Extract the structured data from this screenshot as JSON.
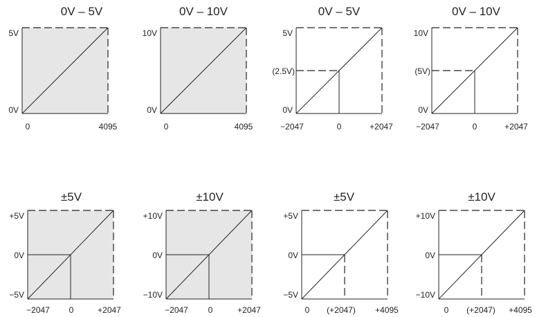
{
  "colors": {
    "shade": "#e6e6e6",
    "line": "#222222"
  },
  "panels": [
    {
      "title": "0V – 5V",
      "y_labels": [
        "5V",
        "0V"
      ],
      "x_labels": [
        "0",
        "4095"
      ]
    },
    {
      "title": "0V – 10V",
      "y_labels": [
        "10V",
        "0V"
      ],
      "x_labels": [
        "0",
        "4095"
      ]
    },
    {
      "title": "0V – 5V",
      "y_labels": [
        "5V",
        "(2.5V)",
        "0V"
      ],
      "x_labels": [
        "−2047",
        "0",
        "+2047"
      ]
    },
    {
      "title": "0V – 10V",
      "y_labels": [
        "10V",
        "(5V)",
        "0V"
      ],
      "x_labels": [
        "−2047",
        "0",
        "+2047"
      ]
    },
    {
      "title": "±5V",
      "y_labels": [
        "+5V",
        "0V",
        "−5V"
      ],
      "x_labels": [
        "−2047",
        "0",
        "+2047"
      ]
    },
    {
      "title": "±10V",
      "y_labels": [
        "+10V",
        "0V",
        "−10V"
      ],
      "x_labels": [
        "−2047",
        "0",
        "+2047"
      ]
    },
    {
      "title": "±5V",
      "y_labels": [
        "+5V",
        "0V",
        "−5V"
      ],
      "x_labels": [
        "0",
        "(+2047)",
        "+4095"
      ]
    },
    {
      "title": "±10V",
      "y_labels": [
        "+10V",
        "0V",
        "−10V"
      ],
      "x_labels": [
        "0",
        "(+2047)",
        "+4095"
      ]
    }
  ]
}
